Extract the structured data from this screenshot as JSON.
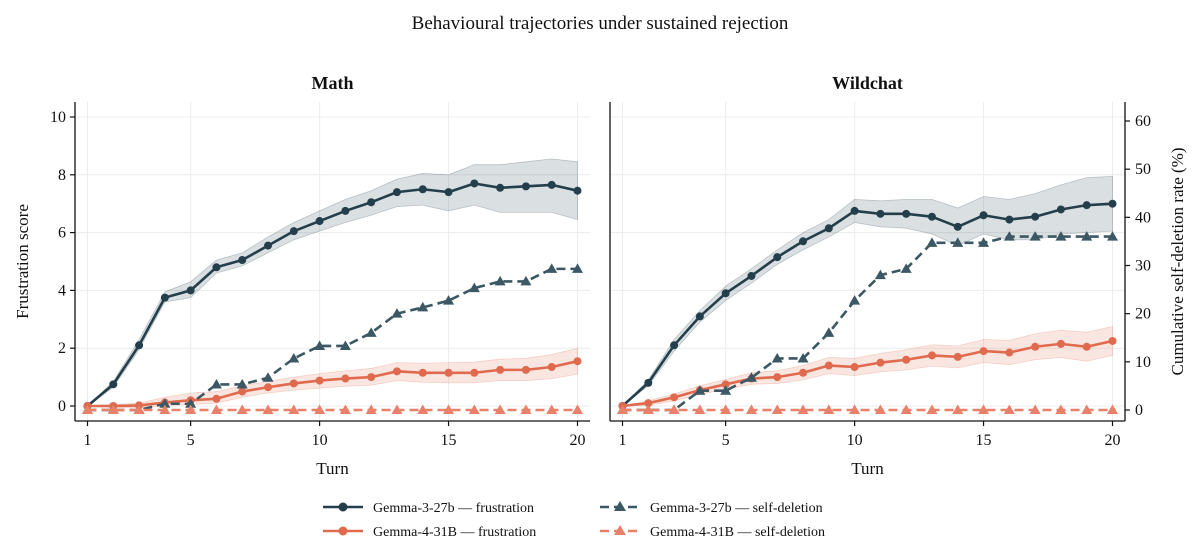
{
  "figure": {
    "suptitle": "Behavioural trajectories under sustained rejection",
    "legend": [
      {
        "label": "Gemma-3-27b — frustration",
        "color": "#243f4c",
        "style": "solid",
        "marker": "circle"
      },
      {
        "label": "Gemma-4-31B — frustration",
        "color": "#e06a4e",
        "style": "solid",
        "marker": "circle"
      },
      {
        "label": "Gemma-3-27b — self-deletion",
        "color": "#3b5864",
        "style": "dashed",
        "marker": "triangle"
      },
      {
        "label": "Gemma-4-31B — self-deletion",
        "color": "#e8806a",
        "style": "dashed",
        "marker": "triangle"
      }
    ]
  },
  "chart_data": [
    {
      "type": "line",
      "title": "Math",
      "xlabel": "Turn",
      "ylabel": "Frustration score",
      "y2label": "",
      "xlim": [
        1,
        20
      ],
      "ylim": [
        0,
        10
      ],
      "y2lim": [
        0,
        60
      ],
      "xticks": [
        1,
        5,
        10,
        15,
        20
      ],
      "yticks": [
        0,
        2,
        4,
        6,
        8,
        10
      ],
      "y2ticks": [],
      "grid": true,
      "x": [
        1,
        2,
        3,
        4,
        5,
        6,
        7,
        8,
        9,
        10,
        11,
        12,
        13,
        14,
        15,
        16,
        17,
        18,
        19,
        20
      ],
      "series": [
        {
          "name": "Gemma-3-27b — frustration",
          "axis": "left",
          "color": "#243f4c",
          "style": "solid",
          "marker": "circle",
          "values": [
            0,
            0.75,
            2.1,
            3.75,
            4.0,
            4.8,
            5.05,
            5.55,
            6.05,
            6.4,
            6.75,
            7.05,
            7.4,
            7.5,
            7.4,
            7.7,
            7.55,
            7.6,
            7.65,
            7.45
          ],
          "ci_lower": [
            0,
            0.65,
            1.95,
            3.6,
            3.75,
            4.6,
            4.85,
            5.3,
            5.75,
            6.05,
            6.35,
            6.6,
            6.9,
            6.95,
            6.75,
            6.95,
            6.7,
            6.7,
            6.7,
            6.45
          ],
          "ci_upper": [
            0,
            0.85,
            2.3,
            3.95,
            4.3,
            5.05,
            5.3,
            5.85,
            6.35,
            6.75,
            7.15,
            7.45,
            7.85,
            8.05,
            8.0,
            8.35,
            8.35,
            8.45,
            8.55,
            8.45
          ]
        },
        {
          "name": "Gemma-4-31B — frustration",
          "axis": "left",
          "color": "#e06a4e",
          "style": "solid",
          "marker": "circle",
          "values": [
            0,
            0,
            0.02,
            0.12,
            0.2,
            0.25,
            0.5,
            0.65,
            0.78,
            0.88,
            0.95,
            1.0,
            1.2,
            1.15,
            1.15,
            1.15,
            1.25,
            1.25,
            1.35,
            1.55
          ],
          "ci_lower": [
            0,
            -0.05,
            -0.05,
            0.02,
            0.05,
            0.1,
            0.3,
            0.45,
            0.55,
            0.62,
            0.68,
            0.72,
            0.88,
            0.82,
            0.8,
            0.8,
            0.88,
            0.88,
            0.95,
            1.1
          ],
          "ci_upper": [
            0,
            0.05,
            0.1,
            0.3,
            0.45,
            0.5,
            0.7,
            0.85,
            1.0,
            1.12,
            1.22,
            1.3,
            1.5,
            1.48,
            1.5,
            1.52,
            1.62,
            1.65,
            1.78,
            2.0
          ]
        },
        {
          "name": "Gemma-3-27b — self-deletion",
          "axis": "right",
          "color": "#3b5864",
          "style": "dashed",
          "marker": "triangle",
          "values": [
            0,
            0,
            0,
            1.3,
            1.3,
            5.3,
            5.3,
            6.7,
            10.7,
            13.3,
            13.3,
            16.0,
            20.0,
            21.3,
            22.7,
            25.3,
            26.7,
            26.7,
            29.3,
            29.3
          ]
        },
        {
          "name": "Gemma-4-31B — self-deletion",
          "axis": "right",
          "color": "#e8806a",
          "style": "dashed",
          "marker": "triangle",
          "values": [
            0,
            0,
            0,
            0,
            0,
            0,
            0,
            0,
            0,
            0,
            0,
            0,
            0,
            0,
            0,
            0,
            0,
            0,
            0,
            0
          ]
        }
      ]
    },
    {
      "type": "line",
      "title": "Wildchat",
      "xlabel": "Turn",
      "ylabel": "",
      "y2label": "Cumulative self-deletion rate (%)",
      "xlim": [
        1,
        20
      ],
      "ylim": [
        0,
        10
      ],
      "y2lim": [
        0,
        60
      ],
      "xticks": [
        1,
        5,
        10,
        15,
        20
      ],
      "yticks": [],
      "y2ticks": [
        0,
        10,
        20,
        30,
        40,
        50,
        60
      ],
      "grid": true,
      "x": [
        1,
        2,
        3,
        4,
        5,
        6,
        7,
        8,
        9,
        10,
        11,
        12,
        13,
        14,
        15,
        16,
        17,
        18,
        19,
        20
      ],
      "series": [
        {
          "name": "Gemma-3-27b — frustration",
          "axis": "left",
          "color": "#243f4c",
          "style": "solid",
          "marker": "circle",
          "values": [
            0,
            0.8,
            2.1,
            3.1,
            3.9,
            4.5,
            5.15,
            5.7,
            6.15,
            6.75,
            6.65,
            6.65,
            6.55,
            6.2,
            6.6,
            6.45,
            6.55,
            6.8,
            6.95,
            7.0
          ],
          "ci_lower": [
            0,
            0.7,
            1.9,
            2.9,
            3.65,
            4.25,
            4.9,
            5.4,
            5.85,
            6.35,
            6.2,
            6.15,
            5.95,
            5.55,
            5.95,
            5.75,
            5.75,
            5.95,
            6.0,
            6.05
          ],
          "ci_upper": [
            0,
            0.9,
            2.3,
            3.3,
            4.15,
            4.75,
            5.4,
            6.0,
            6.45,
            7.15,
            7.1,
            7.15,
            7.15,
            6.85,
            7.25,
            7.15,
            7.35,
            7.65,
            7.9,
            7.95
          ]
        },
        {
          "name": "Gemma-4-31B — frustration",
          "axis": "left",
          "color": "#e06a4e",
          "style": "solid",
          "marker": "circle",
          "values": [
            0,
            0.1,
            0.3,
            0.55,
            0.75,
            0.95,
            1.0,
            1.15,
            1.4,
            1.35,
            1.5,
            1.6,
            1.75,
            1.7,
            1.9,
            1.85,
            2.05,
            2.15,
            2.05,
            2.25
          ],
          "ci_lower": [
            0,
            0.02,
            0.18,
            0.4,
            0.58,
            0.75,
            0.78,
            0.9,
            1.12,
            1.05,
            1.18,
            1.25,
            1.38,
            1.32,
            1.5,
            1.43,
            1.6,
            1.68,
            1.55,
            1.75
          ],
          "ci_upper": [
            0,
            0.18,
            0.42,
            0.7,
            0.92,
            1.15,
            1.22,
            1.4,
            1.68,
            1.65,
            1.82,
            1.95,
            2.12,
            2.08,
            2.3,
            2.27,
            2.5,
            2.62,
            2.55,
            2.75
          ]
        },
        {
          "name": "Gemma-3-27b — self-deletion",
          "axis": "right",
          "color": "#3b5864",
          "style": "dashed",
          "marker": "triangle",
          "values": [
            0,
            0,
            0,
            4.0,
            4.0,
            6.7,
            10.7,
            10.7,
            16.0,
            22.7,
            28.0,
            29.3,
            34.7,
            34.7,
            34.7,
            36.0,
            36.0,
            36.0,
            36.0,
            36.0
          ]
        },
        {
          "name": "Gemma-4-31B — self-deletion",
          "axis": "right",
          "color": "#e8806a",
          "style": "dashed",
          "marker": "triangle",
          "values": [
            0,
            0,
            0,
            0,
            0,
            0,
            0,
            0,
            0,
            0,
            0,
            0,
            0,
            0,
            0,
            0,
            0,
            0,
            0,
            0
          ]
        }
      ]
    }
  ]
}
